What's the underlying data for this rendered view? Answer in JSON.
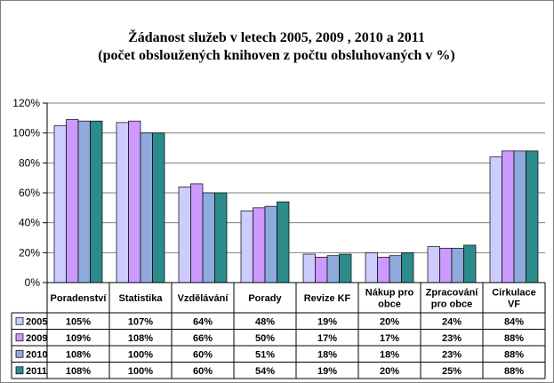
{
  "chart_data": {
    "type": "bar",
    "title_lines": [
      "Žádanost  služeb v letech 2005, 2009 , 2010 a 2011",
      "(počet obsloužených  knihoven z počtu obsluhovaných  v %)"
    ],
    "categories": [
      [
        "Poradenství"
      ],
      [
        "Statistika"
      ],
      [
        "Vzdělávání"
      ],
      [
        "Porady"
      ],
      [
        "Revize KF"
      ],
      [
        "Nákup pro",
        "obce"
      ],
      [
        "Zpracování",
        "pro obce"
      ],
      [
        "Cirkulace",
        "VF"
      ]
    ],
    "series": [
      {
        "name": "2005",
        "color": "#ccccff",
        "values": [
          105,
          107,
          64,
          48,
          19,
          20,
          24,
          84
        ],
        "labels": [
          "105%",
          "107%",
          "64%",
          "48%",
          "19%",
          "20%",
          "24%",
          "84%"
        ]
      },
      {
        "name": "2009",
        "color": "#cc99ff",
        "values": [
          109,
          108,
          66,
          50,
          17,
          17,
          23,
          88
        ],
        "labels": [
          "109%",
          "108%",
          "66%",
          "50%",
          "17%",
          "17%",
          "23%",
          "88%"
        ]
      },
      {
        "name": "2010",
        "color": "#8faadc",
        "values": [
          108,
          100,
          60,
          51,
          18,
          18,
          23,
          88
        ],
        "labels": [
          "108%",
          "100%",
          "60%",
          "51%",
          "18%",
          "18%",
          "23%",
          "88%"
        ]
      },
      {
        "name": "2011",
        "color": "#2e8b8b",
        "values": [
          108,
          100,
          60,
          54,
          19,
          20,
          25,
          88
        ],
        "labels": [
          "108%",
          "100%",
          "60%",
          "54%",
          "19%",
          "20%",
          "25%",
          "88%"
        ]
      }
    ],
    "ylim": [
      0,
      120
    ],
    "yticks": [
      {
        "value": 0,
        "label": "0%"
      },
      {
        "value": 20,
        "label": "20%"
      },
      {
        "value": 40,
        "label": "40%"
      },
      {
        "value": 60,
        "label": "60%"
      },
      {
        "value": 80,
        "label": "80%"
      },
      {
        "value": 100,
        "label": "100%"
      },
      {
        "value": 120,
        "label": "120%"
      }
    ],
    "grid": true,
    "legend": "data-table"
  }
}
